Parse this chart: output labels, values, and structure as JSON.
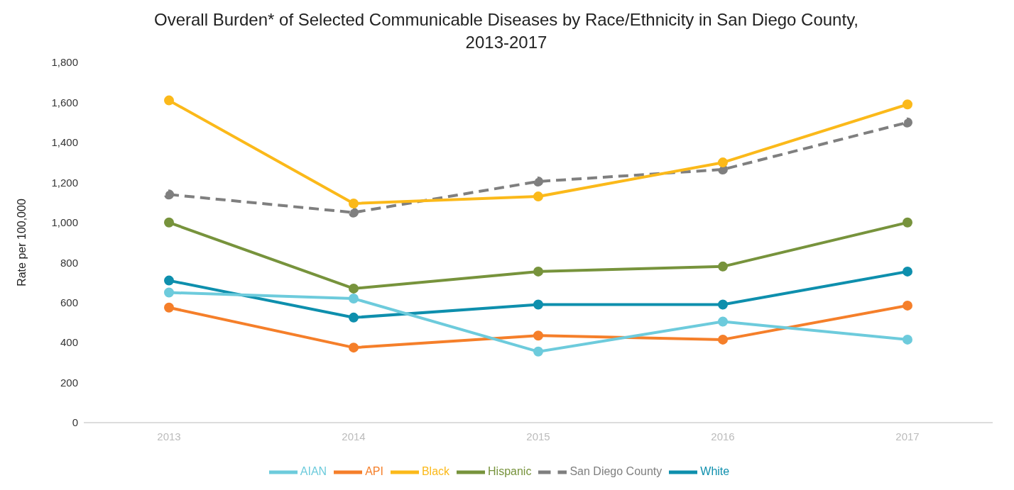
{
  "chart_data": {
    "type": "line",
    "title": "Overall Burden* of Selected Communicable Diseases by Race/Ethnicity in San Diego County, 2013-2017",
    "categories": [
      "2013",
      "2014",
      "2015",
      "2016",
      "2017"
    ],
    "ylabel": "Rate per 100,000",
    "ylim": [
      0,
      1800
    ],
    "yticks": [
      {
        "value": 0,
        "label": "0"
      },
      {
        "value": 200,
        "label": "200"
      },
      {
        "value": 400,
        "label": "400"
      },
      {
        "value": 600,
        "label": "600"
      },
      {
        "value": 800,
        "label": "800"
      },
      {
        "value": 1000,
        "label": "1,000"
      },
      {
        "value": 1200,
        "label": "1,200"
      },
      {
        "value": 1400,
        "label": "1,400"
      },
      {
        "value": 1600,
        "label": "1,600"
      },
      {
        "value": 1800,
        "label": "1,800"
      }
    ],
    "grid": false,
    "legend": "bottom",
    "marker": "circle",
    "series": [
      {
        "name": "San Diego County",
        "color": "#7f7f7f",
        "line_style": "dashed",
        "values": [
          1140,
          1050,
          1205,
          1265,
          1500
        ]
      },
      {
        "name": "White",
        "color": "#0e8fad",
        "line_style": "solid",
        "values": [
          710,
          525,
          590,
          590,
          755
        ]
      },
      {
        "name": "Black",
        "color": "#fbb91a",
        "line_style": "solid",
        "values": [
          1610,
          1095,
          1130,
          1300,
          1590
        ]
      },
      {
        "name": "Hispanic",
        "color": "#77933c",
        "line_style": "solid",
        "values": [
          1000,
          670,
          755,
          780,
          1000
        ]
      },
      {
        "name": "API",
        "color": "#f57f2a",
        "line_style": "solid",
        "values": [
          575,
          375,
          435,
          415,
          585
        ]
      },
      {
        "name": "AIAN",
        "color": "#6dcbdc",
        "line_style": "solid",
        "values": [
          650,
          620,
          355,
          505,
          415
        ]
      }
    ]
  }
}
